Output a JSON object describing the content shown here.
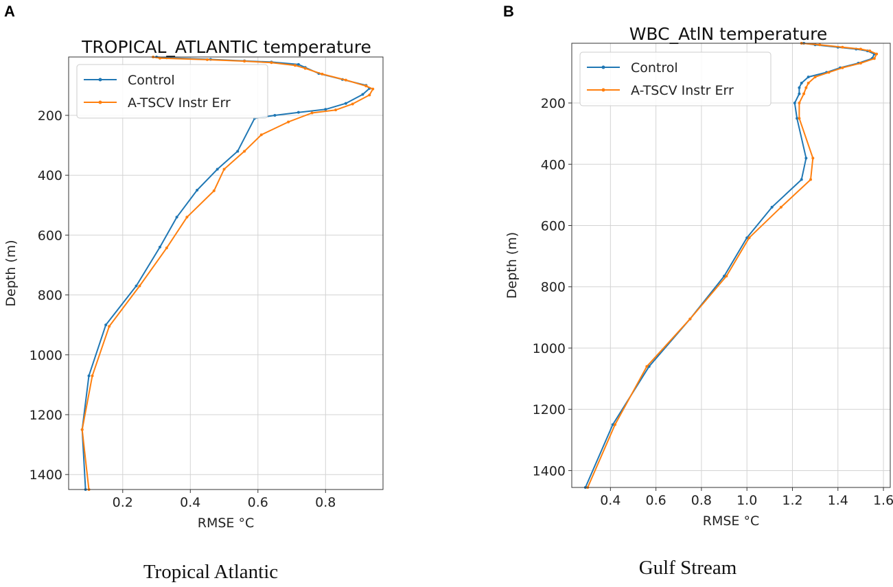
{
  "colors": {
    "control": "#1f77b4",
    "experiment": "#ff7f0e",
    "grid": "#d3d3d3",
    "axis": "#333333"
  },
  "chart_data": [
    {
      "type": "line",
      "panel_label": "A",
      "title": "TROPICAL_ATLANTIC temperature",
      "caption": "Tropical Atlantic",
      "xlabel": "RMSE  °C",
      "ylabel": "Depth (m)",
      "xlim": [
        0.04,
        0.97
      ],
      "ylim": [
        1450,
        5
      ],
      "y_inverted": true,
      "xticks": [
        0.2,
        0.4,
        0.6,
        0.8
      ],
      "xtick_labels": [
        "0.2",
        "0.4",
        "0.6",
        "0.8"
      ],
      "yticks": [
        200,
        400,
        600,
        800,
        1000,
        1200,
        1400
      ],
      "ytick_labels": [
        "200",
        "400",
        "600",
        "800",
        "1000",
        "1200",
        "1400"
      ],
      "grid": true,
      "legend": "top-left",
      "series": [
        {
          "name": "Control",
          "color_key": "control",
          "x": [
            0.3,
            0.33,
            0.46,
            0.56,
            0.64,
            0.72,
            0.74,
            0.78,
            0.85,
            0.92,
            0.93,
            0.91,
            0.86,
            0.8,
            0.72,
            0.65,
            0.59,
            0.54,
            0.48,
            0.42,
            0.36,
            0.31,
            0.24,
            0.15,
            0.1,
            0.08,
            0.09
          ],
          "y": [
            5,
            8,
            13,
            18,
            22,
            30,
            40,
            60,
            80,
            100,
            110,
            130,
            160,
            180,
            190,
            200,
            210,
            320,
            380,
            450,
            540,
            640,
            770,
            900,
            1070,
            1250,
            1450
          ]
        },
        {
          "name": "A-TSCV Instr Err",
          "color_key": "experiment",
          "x": [
            0.29,
            0.31,
            0.45,
            0.56,
            0.64,
            0.71,
            0.74,
            0.79,
            0.86,
            0.92,
            0.94,
            0.93,
            0.88,
            0.83,
            0.76,
            0.69,
            0.61,
            0.56,
            0.5,
            0.47,
            0.39,
            0.33,
            0.25,
            0.16,
            0.11,
            0.08,
            0.1
          ],
          "y": [
            5,
            9,
            14,
            19,
            24,
            33,
            43,
            62,
            82,
            102,
            112,
            132,
            162,
            182,
            192,
            222,
            265,
            320,
            380,
            452,
            540,
            643,
            770,
            905,
            1070,
            1250,
            1450
          ]
        }
      ]
    },
    {
      "type": "line",
      "panel_label": "B",
      "title": "WBC_AtlN temperature",
      "caption": "Gulf Stream",
      "xlabel": "RMSE  °C",
      "ylabel": "Depth (m)",
      "xlim": [
        0.23,
        1.63
      ],
      "ylim": [
        1455,
        5
      ],
      "y_inverted": true,
      "xticks": [
        0.4,
        0.6,
        0.8,
        1.0,
        1.2,
        1.4,
        1.6
      ],
      "xtick_labels": [
        "0.4",
        "0.6",
        "0.8",
        "1.0",
        "1.2",
        "1.4",
        "1.6"
      ],
      "yticks": [
        200,
        400,
        600,
        800,
        1000,
        1200,
        1400
      ],
      "ytick_labels": [
        "200",
        "400",
        "600",
        "800",
        "1000",
        "1200",
        "1400"
      ],
      "grid": true,
      "legend": "top-left",
      "series": [
        {
          "name": "Control",
          "color_key": "control",
          "x": [
            1.25,
            1.3,
            1.4,
            1.48,
            1.53,
            1.56,
            1.55,
            1.49,
            1.41,
            1.35,
            1.27,
            1.24,
            1.23,
            1.23,
            1.21,
            1.22,
            1.26,
            1.24,
            1.11,
            1.0,
            0.9,
            0.75,
            0.57,
            0.41,
            0.29
          ],
          "y": [
            5,
            10,
            18,
            24,
            30,
            40,
            55,
            70,
            85,
            100,
            115,
            135,
            150,
            170,
            200,
            250,
            380,
            450,
            540,
            640,
            765,
            905,
            1060,
            1250,
            1455
          ]
        },
        {
          "name": "A-TSCV Instr Err",
          "color_key": "experiment",
          "x": [
            1.24,
            1.32,
            1.42,
            1.5,
            1.54,
            1.57,
            1.56,
            1.5,
            1.42,
            1.36,
            1.3,
            1.27,
            1.26,
            1.25,
            1.23,
            1.23,
            1.29,
            1.28,
            1.15,
            1.01,
            0.91,
            0.75,
            0.56,
            0.42,
            0.3
          ],
          "y": [
            5,
            10,
            18,
            24,
            30,
            40,
            55,
            70,
            85,
            100,
            115,
            135,
            150,
            170,
            200,
            250,
            380,
            450,
            540,
            640,
            765,
            905,
            1060,
            1250,
            1455
          ]
        }
      ]
    }
  ]
}
